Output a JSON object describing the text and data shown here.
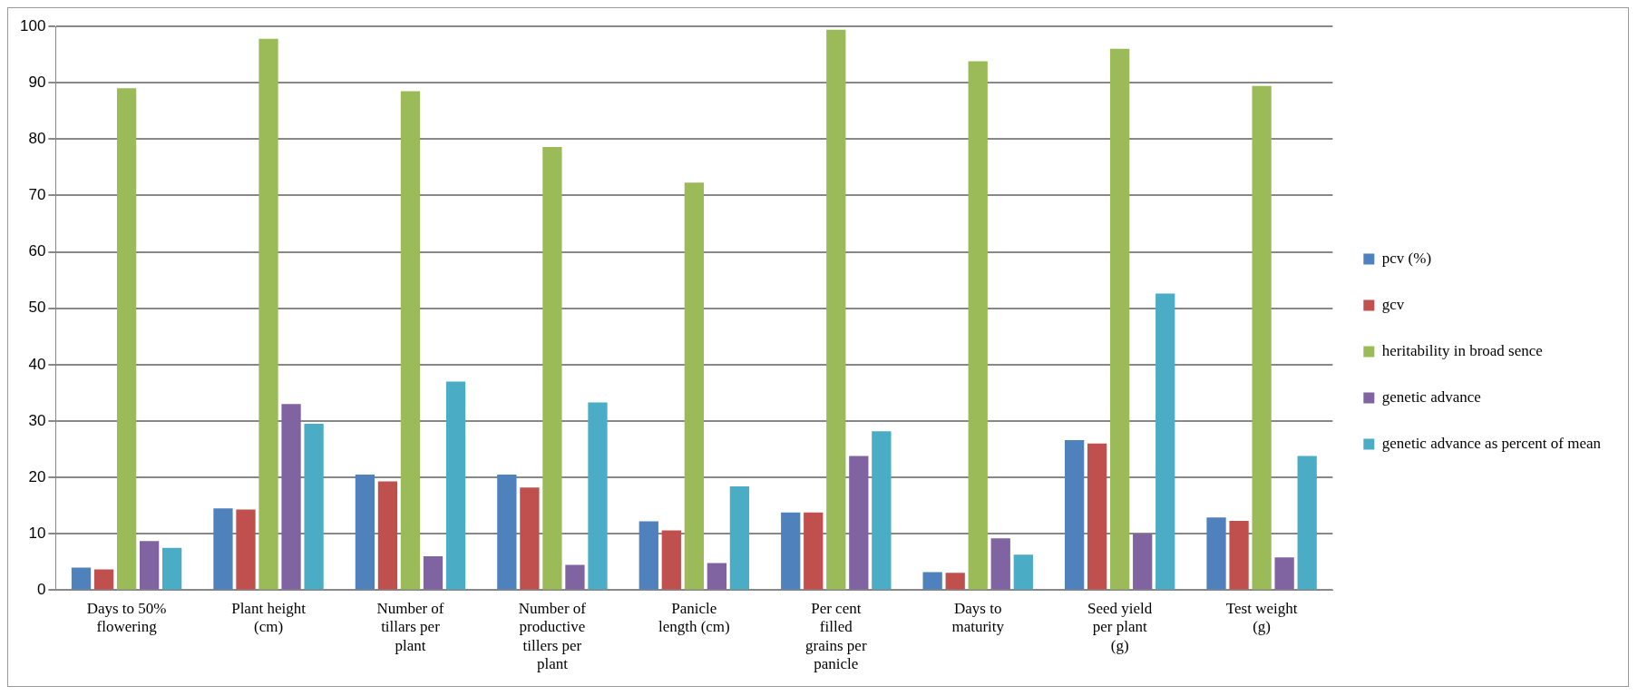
{
  "chart_data": {
    "type": "bar",
    "categories": [
      "Days to 50% flowering",
      "Plant height (cm)",
      "Number of tillars per plant",
      "Number of productive tillers per plant",
      "Panicle length (cm)",
      "Per cent filled grains  per panicle",
      "Days to maturity",
      "Seed yield per plant (g)",
      "Test weight (g)"
    ],
    "series": [
      {
        "name": "pcv (%)",
        "color": "#4f81bd",
        "values": [
          4,
          14.5,
          20.5,
          20.5,
          12.2,
          13.8,
          3.2,
          26.6,
          12.9
        ]
      },
      {
        "name": "gcv",
        "color": "#c0504d",
        "values": [
          3.7,
          14.3,
          19.3,
          18.2,
          10.6,
          13.8,
          3.1,
          26,
          12.3
        ]
      },
      {
        "name": "heritability in broad sence",
        "color": "#9bbb59",
        "values": [
          89,
          97.8,
          88.5,
          78.6,
          72.3,
          99.4,
          93.8,
          96,
          89.4
        ]
      },
      {
        "name": "genetic advance",
        "color": "#8064a2",
        "values": [
          8.7,
          33,
          6,
          4.5,
          4.8,
          23.8,
          9.2,
          10,
          5.8
        ]
      },
      {
        "name": "genetic advance as percent of mean",
        "color": "#4bacc6",
        "values": [
          7.5,
          29.5,
          37,
          33.3,
          18.4,
          28.2,
          6.3,
          52.6,
          23.8
        ]
      }
    ],
    "ylim": [
      0,
      100
    ],
    "yticks": [
      0,
      10,
      20,
      30,
      40,
      50,
      60,
      70,
      80,
      90,
      100
    ],
    "grid": "y",
    "legend": "right"
  }
}
